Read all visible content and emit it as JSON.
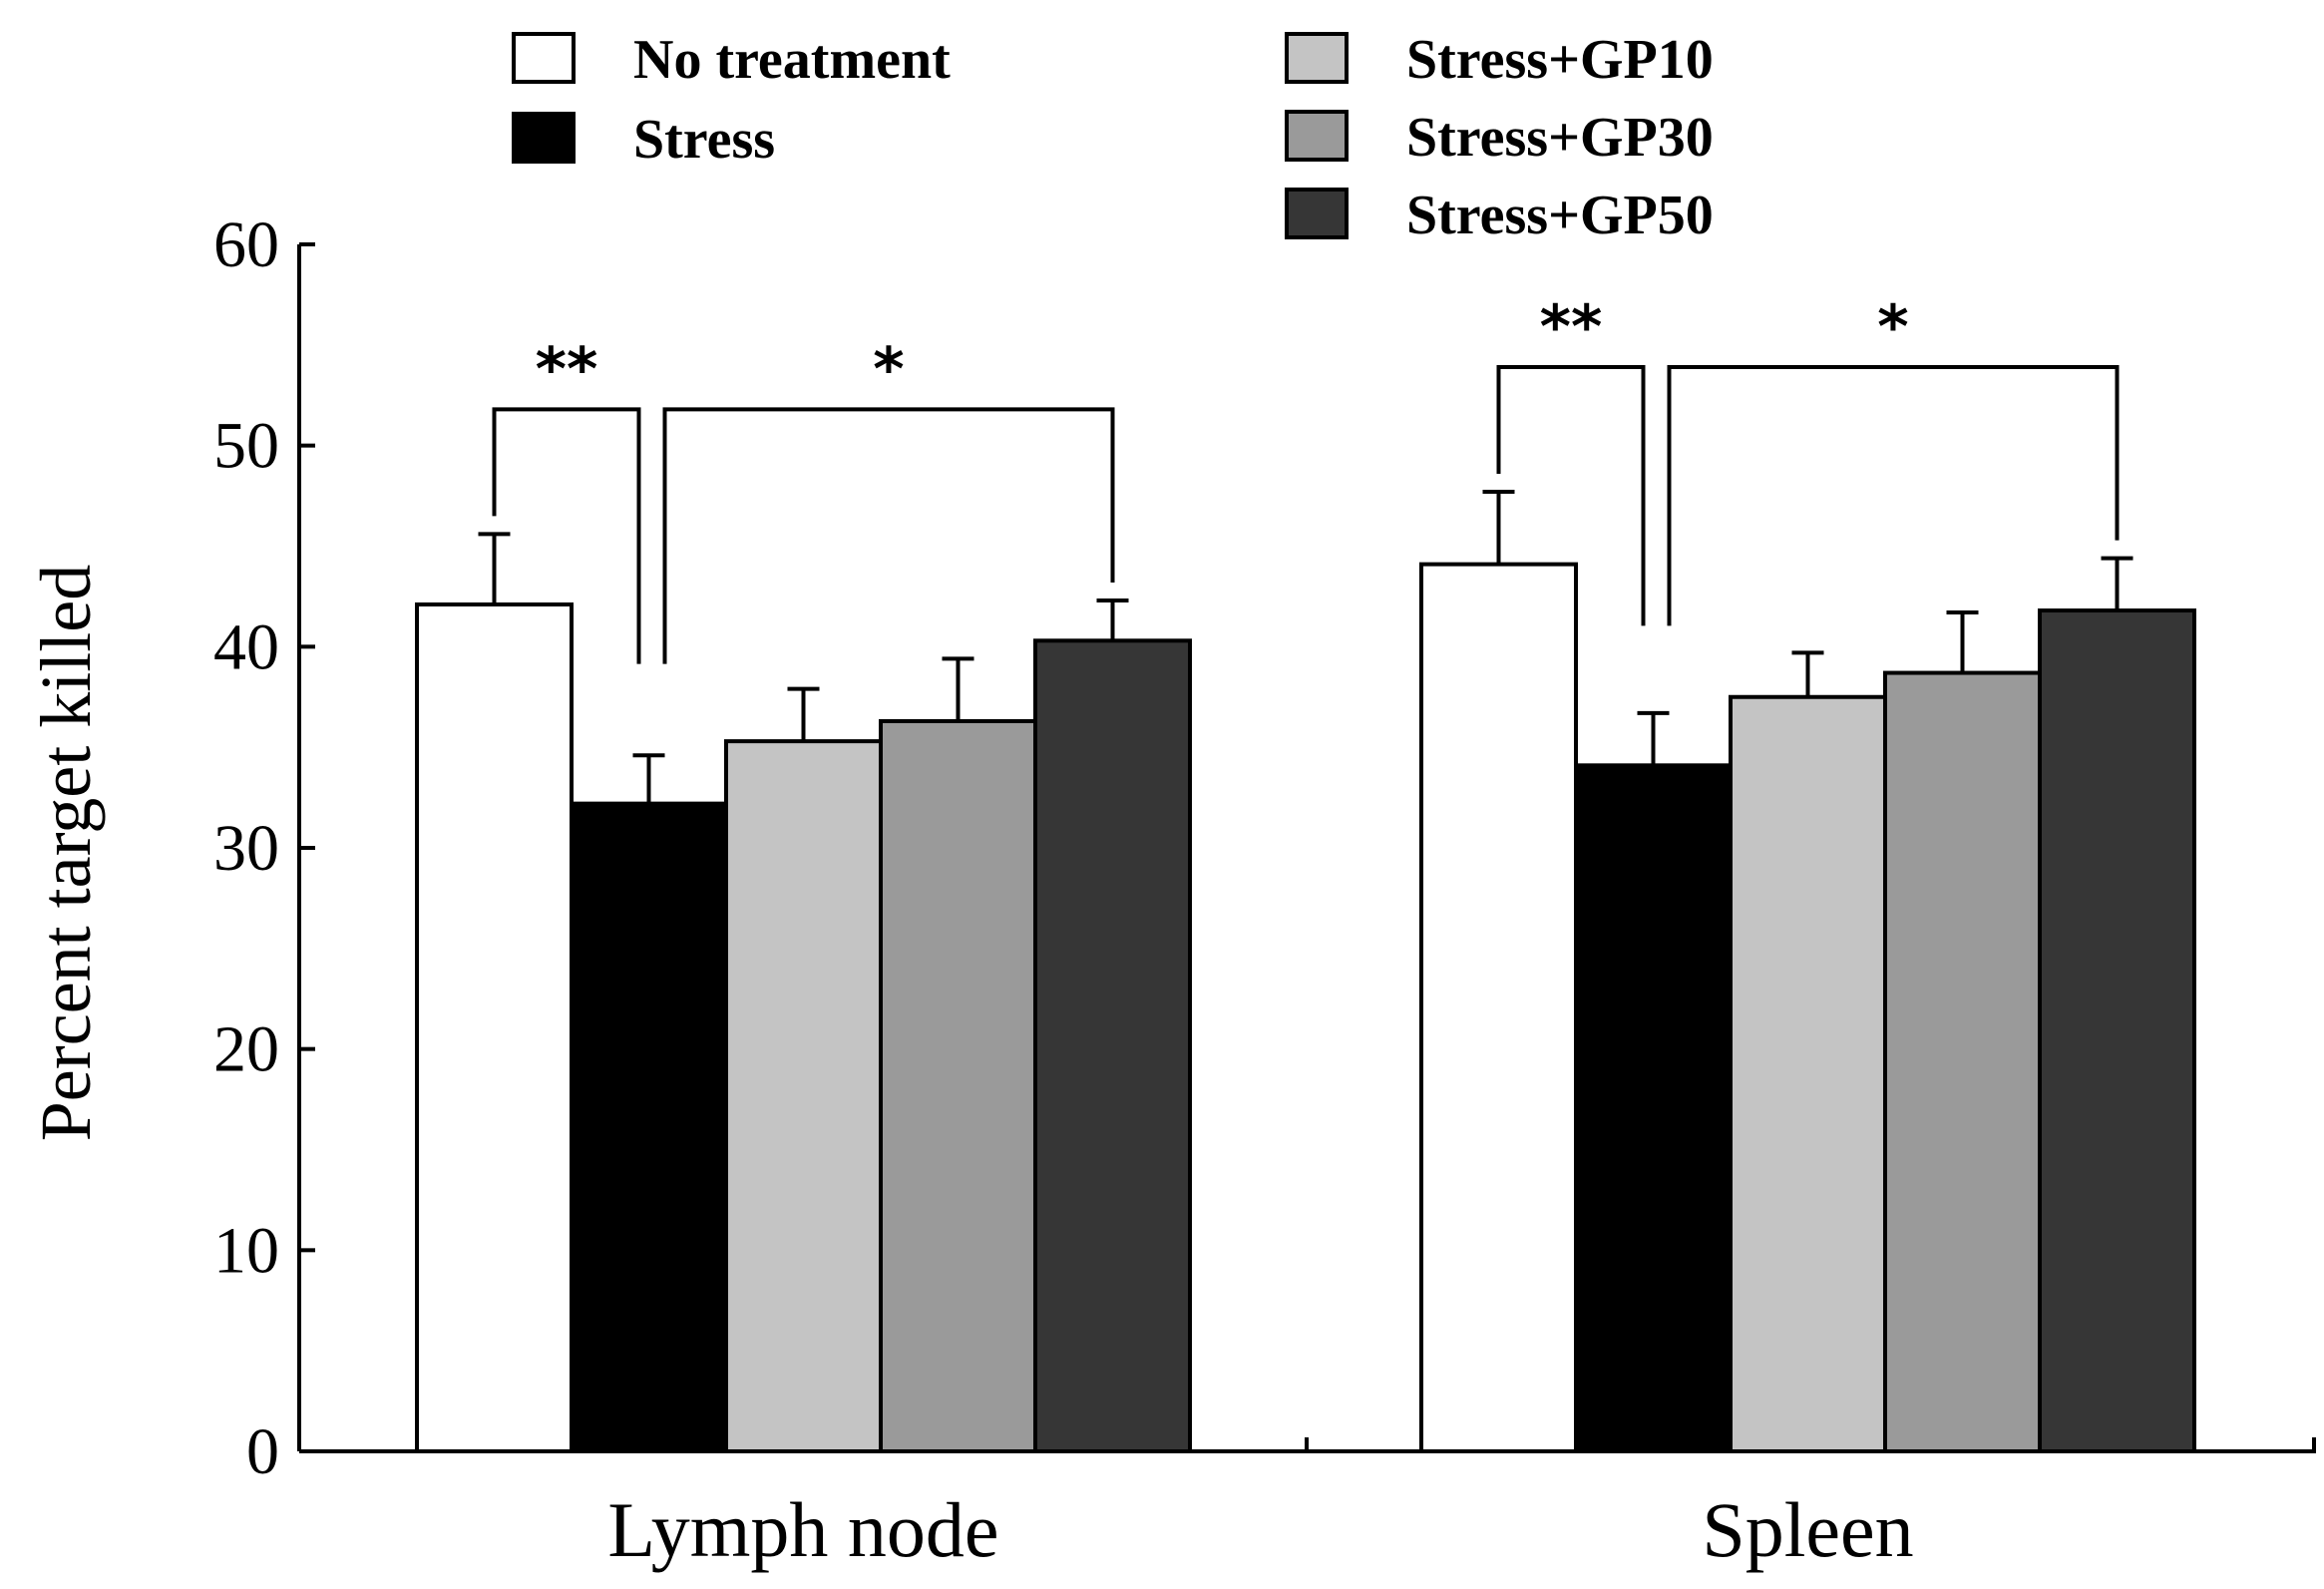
{
  "chart_data": {
    "type": "bar",
    "ylabel": "Percent target killed",
    "ylim": [
      0,
      60
    ],
    "yticks": [
      0,
      10,
      20,
      30,
      40,
      50,
      60
    ],
    "categories": [
      "Lymph node",
      "Spleen"
    ],
    "series": [
      {
        "name": "No treatment",
        "color": "#ffffff",
        "values": [
          42.1,
          44.1
        ],
        "errors": [
          3.5,
          3.6
        ]
      },
      {
        "name": "Stress",
        "color": "#000000",
        "values": [
          32.2,
          34.1
        ],
        "errors": [
          2.4,
          2.6
        ]
      },
      {
        "name": "Stress+GP10",
        "color": "#c4c4c4",
        "values": [
          35.3,
          37.5
        ],
        "errors": [
          2.6,
          2.2
        ]
      },
      {
        "name": "Stress+GP30",
        "color": "#9a9a9a",
        "values": [
          36.3,
          38.7
        ],
        "errors": [
          3.1,
          3.0
        ]
      },
      {
        "name": "Stress+GP50",
        "color": "#363636",
        "values": [
          40.3,
          41.8
        ],
        "errors": [
          2.0,
          2.6
        ]
      }
    ],
    "significance": [
      {
        "category": 0,
        "from_series": 0,
        "to_series": 1,
        "label": "**"
      },
      {
        "category": 0,
        "from_series": 1,
        "to_series": 4,
        "label": "*"
      },
      {
        "category": 1,
        "from_series": 0,
        "to_series": 1,
        "label": "**"
      },
      {
        "category": 1,
        "from_series": 1,
        "to_series": 4,
        "label": "*"
      }
    ],
    "legend_placement": "top"
  }
}
